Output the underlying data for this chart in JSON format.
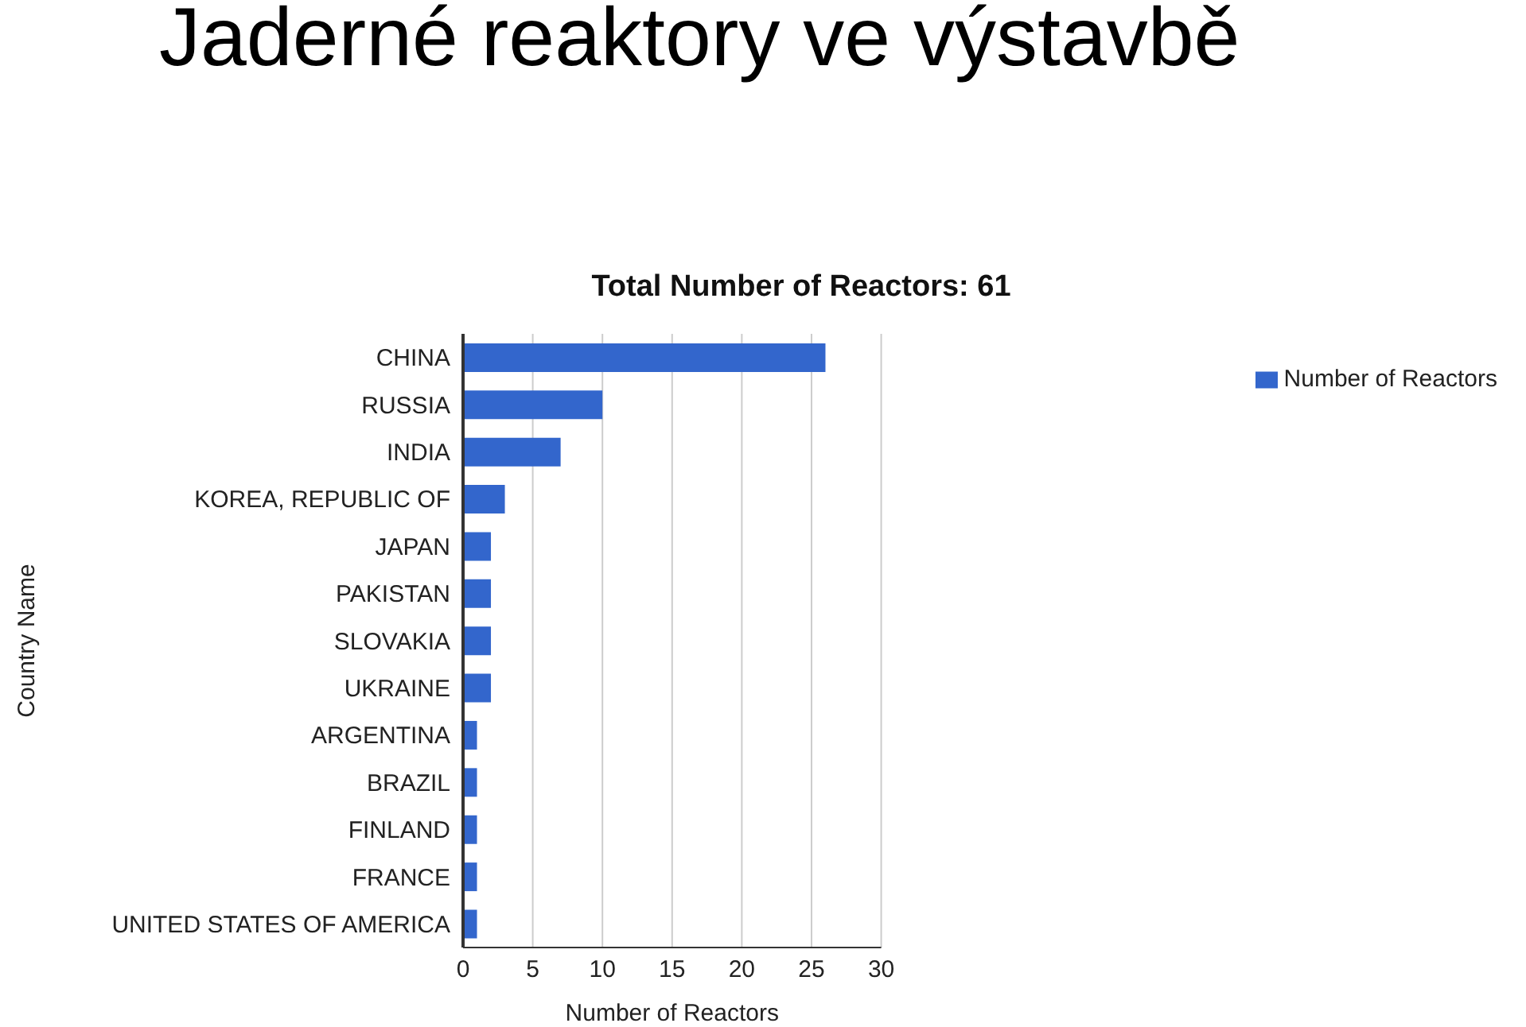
{
  "chart_data": {
    "type": "bar",
    "orientation": "horizontal",
    "title": "Jaderné reaktory ve výstavbě",
    "subtitle": "Total Number of Reactors: 61",
    "xlabel": "Number of Reactors",
    "ylabel": "Country Name",
    "categories": [
      "CHINA",
      "RUSSIA",
      "INDIA",
      "KOREA, REPUBLIC OF",
      "JAPAN",
      "PAKISTAN",
      "SLOVAKIA",
      "UKRAINE",
      "ARGENTINA",
      "BRAZIL",
      "FINLAND",
      "FRANCE",
      "UNITED STATES OF AMERICA"
    ],
    "series": [
      {
        "name": "Number of Reactors",
        "color": "#3366cc",
        "values": [
          26,
          10,
          7,
          3,
          2,
          2,
          2,
          2,
          1,
          1,
          1,
          1,
          1
        ]
      }
    ],
    "xlim": [
      0,
      30
    ],
    "xticks": [
      0,
      5,
      10,
      15,
      20,
      25,
      30
    ],
    "grid": "x",
    "legend": "top right"
  }
}
